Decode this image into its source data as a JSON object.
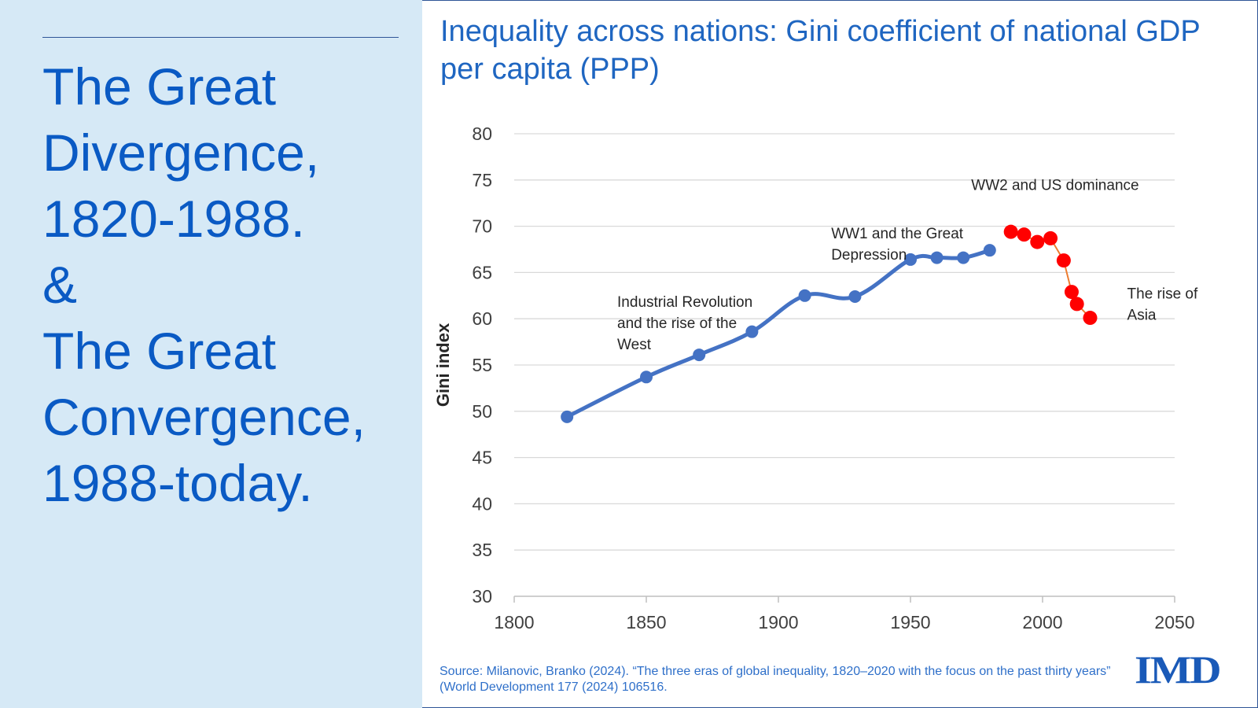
{
  "slide": {
    "headline_lines": [
      "The Great",
      "Divergence,",
      "1820-1988.",
      "&",
      "The Great",
      "Convergence,",
      "1988-today."
    ],
    "chart_title": "Inequality across nations: Gini coefficient of national GDP per capita (PPP)",
    "source": "Source: Milanovic, Branko (2024). “The three eras of global inequality, 1820–2020 with the focus on the past thirty years” (World Development 177 (2024) 106516.",
    "logo_text": "IMD"
  },
  "colors": {
    "left_panel_bg": "#d6e9f6",
    "headline": "#0a5ac4",
    "title": "#1f66c1",
    "divergence_series": "#4472c4",
    "convergence_series": "#ff0000",
    "convergence_line": "#ed7d31",
    "grid": "#d9d9d9"
  },
  "chart_data": {
    "type": "line",
    "title": "Inequality across nations: Gini coefficient of national GDP per capita (PPP)",
    "xlabel": "",
    "ylabel": "Gini index",
    "xlim": [
      1800,
      2050
    ],
    "ylim": [
      30,
      80
    ],
    "xticks": [
      1800,
      1850,
      1900,
      1950,
      2000,
      2050
    ],
    "yticks": [
      30,
      35,
      40,
      45,
      50,
      55,
      60,
      65,
      70,
      75,
      80
    ],
    "grid": true,
    "series": [
      {
        "name": "Great Divergence",
        "color": "#4472c4",
        "x": [
          1820,
          1850,
          1870,
          1890,
          1910,
          1929,
          1950,
          1960,
          1970,
          1980
        ],
        "y": [
          49.4,
          53.7,
          56.1,
          58.6,
          62.5,
          62.4,
          66.4,
          66.6,
          66.6,
          67.4
        ]
      },
      {
        "name": "Great Convergence",
        "color": "#ff0000",
        "x": [
          1988,
          1993,
          1998,
          2003,
          2008,
          2011,
          2013,
          2018
        ],
        "y": [
          69.4,
          69.1,
          68.3,
          68.7,
          66.3,
          62.9,
          61.6,
          60.1
        ]
      }
    ],
    "annotations": [
      {
        "lines": [
          "Industrial Revolution",
          "and the rise of the",
          "West"
        ],
        "x": 1839,
        "y": 61.3
      },
      {
        "lines": [
          "WW1 and the Great",
          "Depression"
        ],
        "x": 1920,
        "y": 68.7
      },
      {
        "lines": [
          "WW2 and US dominance"
        ],
        "x": 1973,
        "y": 73.9
      },
      {
        "lines": [
          "The rise of",
          "Asia"
        ],
        "x": 2032,
        "y": 62.2
      }
    ]
  }
}
